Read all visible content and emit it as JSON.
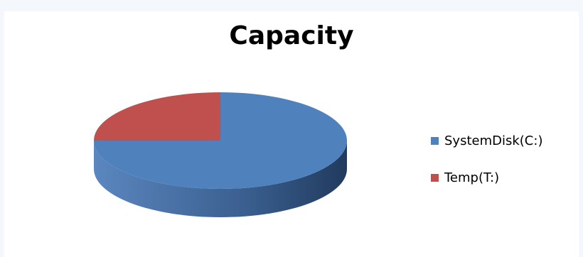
{
  "chart_data": {
    "type": "pie",
    "title": "Capacity",
    "series": [
      {
        "name": "SystemDisk(C:)",
        "value": 75,
        "color": "#4f81bd",
        "side_color": "#3a5f8f"
      },
      {
        "name": "Temp(T:)",
        "value": 25,
        "color": "#c0504d",
        "side_color": "#8e3b39"
      }
    ],
    "start": "north",
    "direction": "clockwise",
    "legend_position": "right",
    "three_d": true
  }
}
